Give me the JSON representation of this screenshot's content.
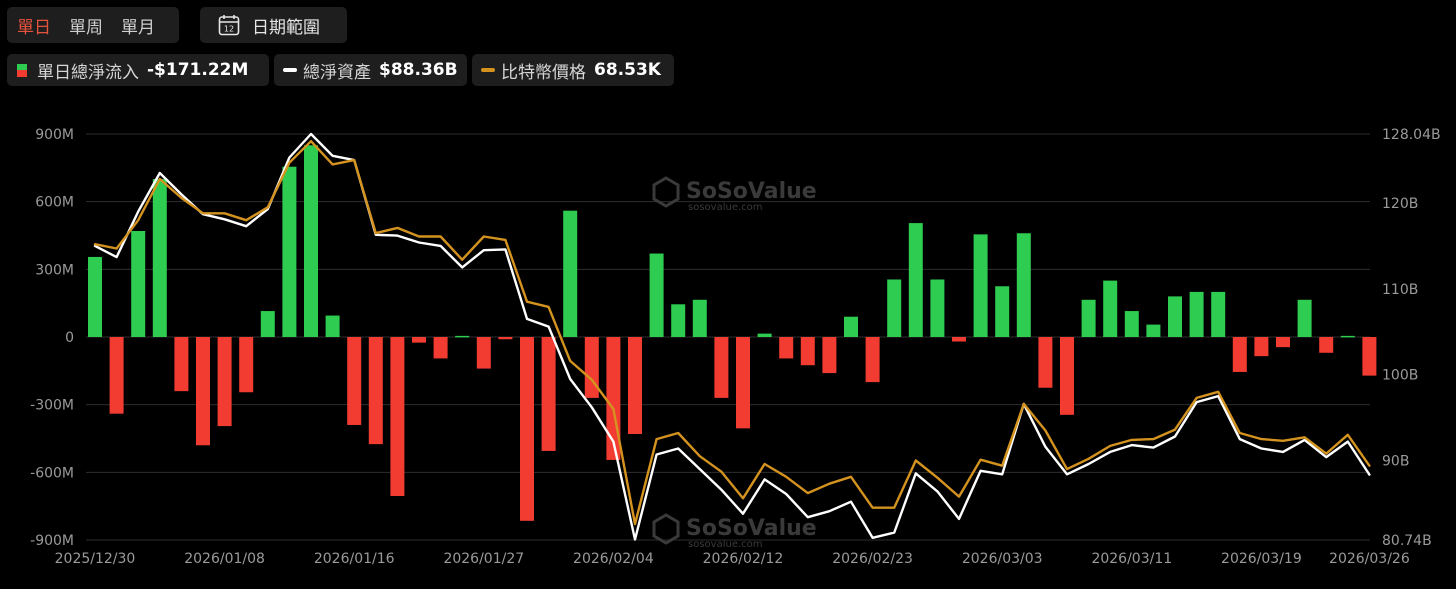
{
  "toolbar": {
    "periods": [
      "單日",
      "單周",
      "單月"
    ],
    "active_period": "單日",
    "date_range_label": "日期範圍",
    "calendar_day": "12"
  },
  "legend": [
    {
      "name": "單日總淨流入",
      "value": "-$171.22M",
      "swatch": "bar"
    },
    {
      "name": "總淨資產",
      "value": "$88.36B",
      "swatch": "line",
      "color": "#ffffff"
    },
    {
      "name": "比特幣價格",
      "value": "68.53K",
      "swatch": "line",
      "color": "#d4931f"
    }
  ],
  "watermark": {
    "brand": "SoSoValue",
    "url": "sosovalue.com"
  },
  "colors": {
    "positive": "#2fcc52",
    "negative": "#f23c32",
    "assets_line": "#ffffff",
    "price_line": "#d4931f"
  },
  "chart_data": {
    "type": "bar+line",
    "left_axis": {
      "ticks": [
        "900M",
        "600M",
        "300M",
        "0",
        "-300M",
        "-600M",
        "-900M"
      ],
      "range": [
        -900,
        900
      ],
      "unit": "M USD"
    },
    "right_axis": {
      "ticks": [
        "128.04B",
        "120B",
        "110B",
        "100B",
        "90B",
        "80.74B"
      ],
      "range": [
        80.74,
        128.04
      ],
      "unit": "B USD"
    },
    "x_ticks": [
      {
        "label": "2025/12/30",
        "index": 0
      },
      {
        "label": "2026/01/08",
        "index": 6
      },
      {
        "label": "2026/01/16",
        "index": 12
      },
      {
        "label": "2026/01/27",
        "index": 18
      },
      {
        "label": "2026/02/04",
        "index": 24
      },
      {
        "label": "2026/02/12",
        "index": 30
      },
      {
        "label": "2026/02/23",
        "index": 36
      },
      {
        "label": "2026/03/03",
        "index": 42
      },
      {
        "label": "2026/03/11",
        "index": 48
      },
      {
        "label": "2026/03/19",
        "index": 54
      },
      {
        "label": "2026/03/26",
        "index": 59
      }
    ],
    "series": [
      {
        "kind": "bar",
        "values": [
          355,
          -340,
          470,
          700,
          -240,
          -480,
          -395,
          -245,
          115,
          755,
          850,
          95,
          -390,
          -475,
          -705,
          -25,
          -95,
          5,
          -140,
          -10,
          -815,
          -505,
          560,
          -270,
          -545,
          -430,
          370,
          145,
          165,
          -270,
          -405,
          15,
          -95,
          -125,
          -160,
          90,
          -200,
          255,
          505,
          255,
          -20,
          455,
          225,
          460,
          -225,
          -345,
          165,
          250,
          115,
          55,
          180,
          200,
          200,
          -155,
          -85,
          -45,
          165,
          -70,
          5,
          -171.22
        ]
      },
      {
        "name": "總淨資產",
        "kind": "line",
        "values": [
          115,
          113.7,
          119,
          123.5,
          121,
          118.7,
          118.1,
          117.3,
          119.3,
          125.3,
          128.04,
          125.5,
          125.0,
          116.3,
          116.2,
          115.4,
          115.0,
          112.5,
          114.5,
          114.6,
          106.5,
          105.6,
          99.5,
          96.2,
          92.2,
          80.8,
          90.7,
          91.4,
          89.0,
          86.6,
          83.8,
          87.8,
          86.1,
          83.4,
          84.1,
          85.2,
          81.0,
          81.6,
          88.5,
          86.4,
          83.2,
          88.8,
          88.4,
          96.6,
          91.6,
          88.4,
          89.6,
          91.0,
          91.8,
          91.5,
          92.8,
          96.8,
          97.5,
          92.5,
          91.4,
          91.0,
          92.4,
          90.4,
          92.2,
          88.36
        ]
      },
      {
        "name": "比特幣價格",
        "kind": "line",
        "values": [
          115.2,
          114.7,
          118.0,
          122.8,
          120.6,
          118.8,
          118.8,
          118.0,
          119.5,
          124.7,
          127.2,
          124.5,
          125.0,
          116.5,
          117.1,
          116.1,
          116.1,
          113.4,
          116.1,
          115.7,
          108.5,
          107.9,
          101.6,
          99.4,
          96.0,
          82.6,
          92.5,
          93.2,
          90.5,
          88.7,
          85.6,
          89.6,
          88.1,
          86.2,
          87.3,
          88.1,
          84.5,
          84.5,
          90.0,
          88.0,
          85.8,
          90.1,
          89.4,
          96.6,
          93.5,
          89.0,
          90.2,
          91.7,
          92.4,
          92.5,
          93.6,
          97.3,
          98.0,
          93.2,
          92.5,
          92.3,
          92.7,
          90.8,
          93.0,
          89.4
        ]
      }
    ]
  }
}
